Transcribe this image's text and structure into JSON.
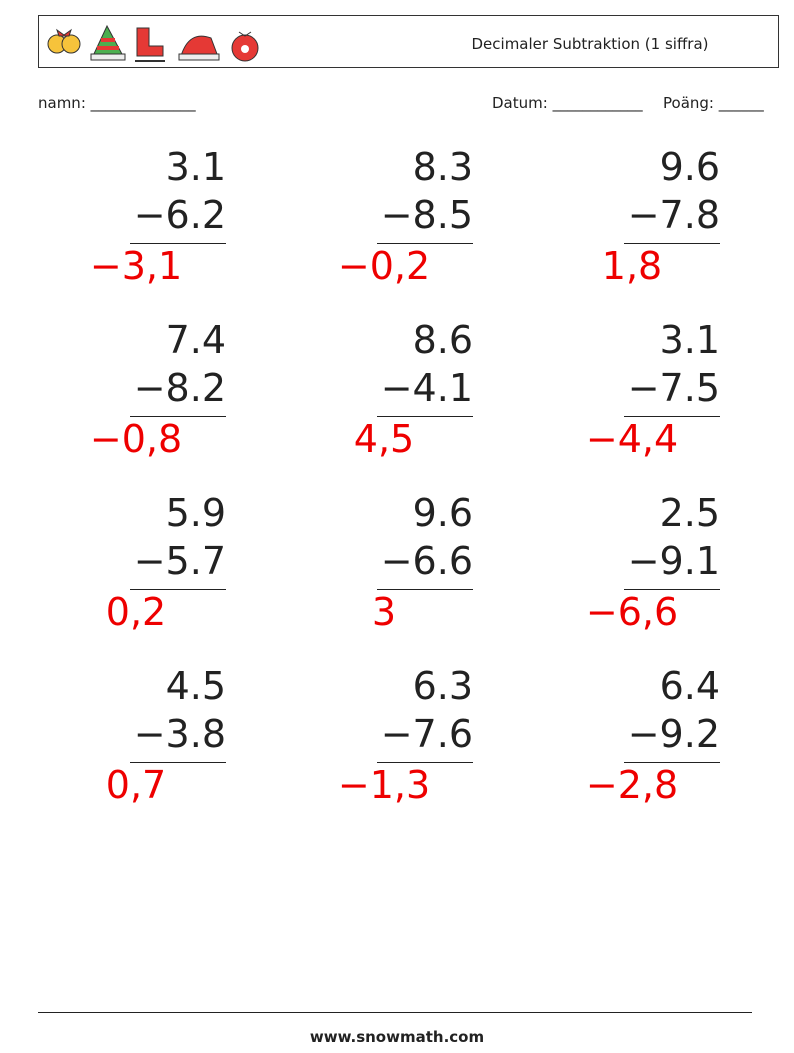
{
  "header": {
    "title": "Decimaler Subtraktion (1 siffra)"
  },
  "fields": {
    "name": "namn: ______________",
    "date": "Datum: ____________",
    "score": "Poäng: ______"
  },
  "problems": [
    [
      {
        "top": "3.1",
        "bottom": "−6.2",
        "answer": "−3,1"
      },
      {
        "top": "8.3",
        "bottom": "−8.5",
        "answer": "−0,2"
      },
      {
        "top": "9.6",
        "bottom": "−7.8",
        "answer": "1,8"
      }
    ],
    [
      {
        "top": "7.4",
        "bottom": "−8.2",
        "answer": "−0,8"
      },
      {
        "top": "8.6",
        "bottom": "−4.1",
        "answer": "4,5"
      },
      {
        "top": "3.1",
        "bottom": "−7.5",
        "answer": "−4,4"
      }
    ],
    [
      {
        "top": "5.9",
        "bottom": "−5.7",
        "answer": "0,2"
      },
      {
        "top": "9.6",
        "bottom": "−6.6",
        "answer": "3"
      },
      {
        "top": "2.5",
        "bottom": "−9.1",
        "answer": "−6,6"
      }
    ],
    [
      {
        "top": "4.5",
        "bottom": "−3.8",
        "answer": "0,7"
      },
      {
        "top": "6.3",
        "bottom": "−7.6",
        "answer": "−1,3"
      },
      {
        "top": "6.4",
        "bottom": "−9.2",
        "answer": "−2,8"
      }
    ]
  ],
  "footer": {
    "site": "www.snowmath.com"
  }
}
